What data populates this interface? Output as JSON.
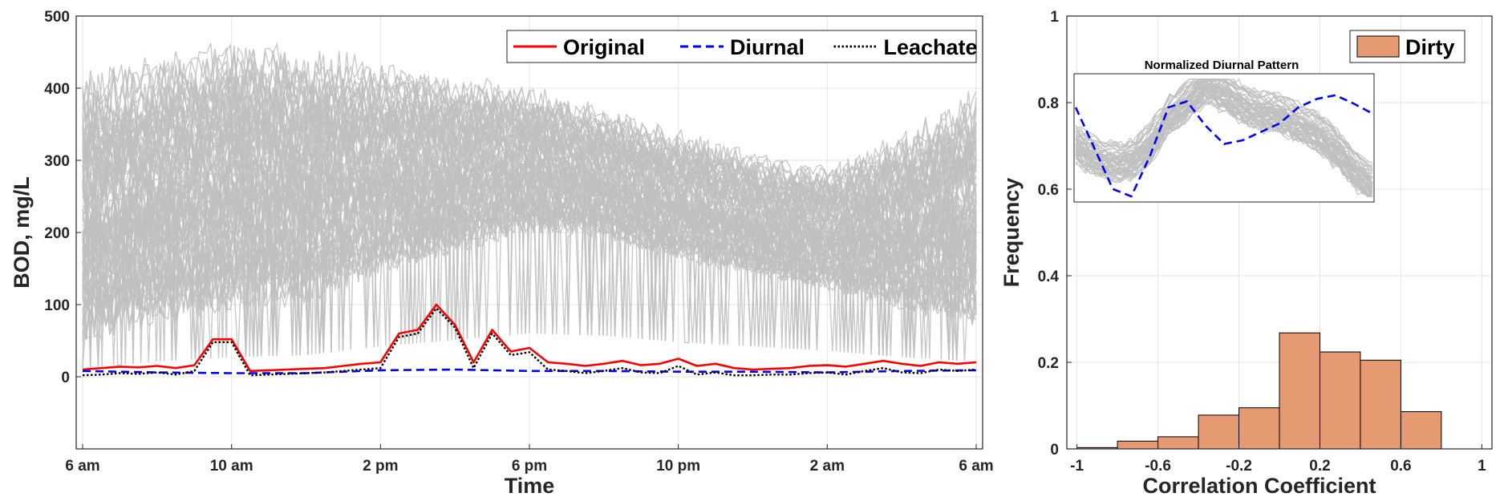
{
  "chart_data": [
    {
      "type": "line",
      "xlabel": "Time",
      "ylabel": "BOD, mg/L",
      "ylim": [
        -100,
        500
      ],
      "xlim": [
        0,
        24
      ],
      "x_tick_labels": [
        "6 am",
        "10 am",
        "2 pm",
        "6 pm",
        "10 pm",
        "2 am",
        "6 am"
      ],
      "x_tick_hours": [
        0,
        4,
        8,
        12,
        16,
        20,
        24
      ],
      "y_ticks": [
        0,
        100,
        200,
        300,
        400,
        500
      ],
      "grid": true,
      "legend_position": "top-right",
      "colors": {
        "original": "#ff0000",
        "diurnal": "#0000ff",
        "leachate": "#000000",
        "background": "#c0c0c0"
      },
      "background_ensemble": {
        "band_low": [
          40,
          70,
          90,
          100,
          140,
          170,
          200,
          190,
          160,
          140,
          120,
          90,
          70
        ],
        "band_high": [
          400,
          420,
          440,
          430,
          420,
          400,
          390,
          360,
          330,
          300,
          280,
          320,
          380
        ]
      },
      "series": [
        {
          "name": "Original",
          "style": "solid",
          "x": [
            0,
            0.5,
            1,
            1.5,
            2,
            2.5,
            3,
            3.5,
            4,
            4.5,
            5,
            5.5,
            6,
            6.5,
            7,
            7.5,
            8,
            8.5,
            9,
            9.5,
            10,
            10.5,
            11,
            11.5,
            12,
            12.5,
            13,
            13.5,
            14,
            14.5,
            15,
            15.5,
            16,
            16.5,
            17,
            17.5,
            18,
            18.5,
            19,
            19.5,
            20,
            20.5,
            21,
            21.5,
            22,
            22.5,
            23,
            23.5,
            24
          ],
          "y": [
            10,
            12,
            14,
            13,
            15,
            12,
            16,
            52,
            52,
            8,
            9,
            10,
            11,
            12,
            15,
            18,
            20,
            60,
            65,
            100,
            72,
            20,
            65,
            35,
            40,
            20,
            18,
            15,
            18,
            22,
            16,
            18,
            25,
            15,
            18,
            12,
            10,
            11,
            12,
            15,
            16,
            14,
            18,
            22,
            18,
            15,
            20,
            18,
            20
          ]
        },
        {
          "name": "Diurnal",
          "style": "dashed",
          "x": [
            0,
            2,
            4,
            6,
            8,
            10,
            12,
            14,
            16,
            18,
            20,
            22,
            24
          ],
          "y": [
            8,
            6,
            5,
            5,
            9,
            10,
            8,
            8,
            7,
            7,
            6,
            8,
            9
          ]
        },
        {
          "name": "Leachate",
          "style": "dotted",
          "x": [
            0,
            0.5,
            1,
            1.5,
            2,
            2.5,
            3,
            3.5,
            4,
            4.5,
            5,
            5.5,
            6,
            6.5,
            7,
            7.5,
            8,
            8.5,
            9,
            9.5,
            10,
            10.5,
            11,
            11.5,
            12,
            12.5,
            13,
            13.5,
            14,
            14.5,
            15,
            15.5,
            16,
            16.5,
            17,
            17.5,
            18,
            18.5,
            19,
            19.5,
            20,
            20.5,
            21,
            21.5,
            22,
            22.5,
            23,
            23.5,
            24
          ],
          "y": [
            2,
            3,
            5,
            4,
            6,
            3,
            8,
            48,
            48,
            2,
            3,
            4,
            5,
            6,
            8,
            10,
            12,
            55,
            60,
            95,
            68,
            12,
            60,
            30,
            34,
            10,
            8,
            5,
            8,
            12,
            6,
            5,
            15,
            3,
            6,
            2,
            2,
            3,
            3,
            5,
            6,
            3,
            8,
            12,
            6,
            5,
            10,
            8,
            10
          ]
        }
      ]
    },
    {
      "type": "bar",
      "xlabel": "Correlation Coefficient",
      "ylabel": "Frequency",
      "xlim": [
        -1.05,
        1.05
      ],
      "ylim": [
        0,
        1
      ],
      "x_ticks": [
        -1,
        -0.6,
        -0.2,
        0.2,
        0.6,
        1
      ],
      "x_tick_labels": [
        "-1",
        "-0.6",
        "-0.2",
        "0.2",
        "0.6",
        "1"
      ],
      "y_ticks": [
        0,
        0.2,
        0.4,
        0.6,
        0.8,
        1
      ],
      "y_tick_labels": [
        "0",
        "0.2",
        "0.4",
        "0.6",
        "0.8",
        "1"
      ],
      "grid": true,
      "legend_position": "top-right",
      "bin_edges": [
        -1,
        -0.8,
        -0.6,
        -0.4,
        -0.2,
        0,
        0.2,
        0.4,
        0.6,
        0.8
      ],
      "series": [
        {
          "name": "Dirty",
          "color": "#e59a72",
          "values": [
            0.003,
            0.018,
            0.028,
            0.078,
            0.095,
            0.268,
            0.224,
            0.205,
            0.086
          ]
        }
      ]
    },
    {
      "type": "line",
      "title": "Normalized Diurnal Pattern",
      "ylim": [
        0,
        1
      ],
      "colors": {
        "pattern": "#0000ff",
        "ensemble": "#c0c0c0"
      },
      "ensemble_mean": [
        0.45,
        0.35,
        0.3,
        0.32,
        0.45,
        0.68,
        0.8,
        0.95,
        0.88,
        0.78,
        0.72,
        0.7,
        0.62,
        0.55,
        0.42,
        0.25,
        0.12
      ],
      "series": [
        {
          "name": "Diurnal",
          "style": "dashed",
          "values": [
            0.75,
            0.42,
            0.08,
            0.02,
            0.35,
            0.75,
            0.8,
            0.6,
            0.45,
            0.48,
            0.55,
            0.62,
            0.75,
            0.82,
            0.85,
            0.78,
            0.7
          ]
        }
      ]
    }
  ]
}
